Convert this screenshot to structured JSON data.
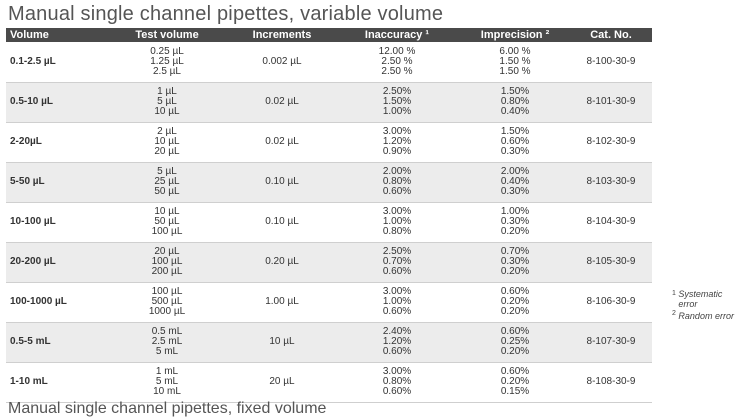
{
  "title": "Manual single channel pipettes, variable volume",
  "columns": [
    "Volume",
    "Test volume",
    "Increments",
    "Inaccuracy ¹",
    "Imprecision ²",
    "Cat. No."
  ],
  "rows": [
    {
      "volume": "0.1-2.5 µL",
      "test": [
        "0.25 µL",
        "1.25 µL",
        "2.5 µL"
      ],
      "increment": "0.002 µL",
      "inaccuracy": [
        "12.00 %",
        "2.50 %",
        "2.50 %"
      ],
      "imprecision": [
        "6.00 %",
        "1.50 %",
        "1.50 %"
      ],
      "cat": "8-100-30-9"
    },
    {
      "volume": "0.5-10 µL",
      "test": [
        "1 µL",
        "5 µL",
        "10 µL"
      ],
      "increment": "0.02 µL",
      "inaccuracy": [
        "2.50%",
        "1.50%",
        "1.00%"
      ],
      "imprecision": [
        "1.50%",
        "0.80%",
        "0.40%"
      ],
      "cat": "8-101-30-9"
    },
    {
      "volume": "2-20µL",
      "test": [
        "2 µL",
        "10 µL",
        "20 µL"
      ],
      "increment": "0.02 µL",
      "inaccuracy": [
        "3.00%",
        "1.20%",
        "0.90%"
      ],
      "imprecision": [
        "1.50%",
        "0.60%",
        "0.30%"
      ],
      "cat": "8-102-30-9"
    },
    {
      "volume": "5-50 µL",
      "test": [
        "5 µL",
        "25 µL",
        "50 µL"
      ],
      "increment": "0.10 µL",
      "inaccuracy": [
        "2.00%",
        "0.80%",
        "0.60%"
      ],
      "imprecision": [
        "2.00%",
        "0.40%",
        "0.30%"
      ],
      "cat": "8-103-30-9"
    },
    {
      "volume": "10-100 µL",
      "test": [
        "10 µL",
        "50 µL",
        "100 µL"
      ],
      "increment": "0.10 µL",
      "inaccuracy": [
        "3.00%",
        "1.00%",
        "0.80%"
      ],
      "imprecision": [
        "1.00%",
        "0.30%",
        "0.20%"
      ],
      "cat": "8-104-30-9"
    },
    {
      "volume": "20-200 µL",
      "test": [
        "20 µL",
        "100 µL",
        "200 µL"
      ],
      "increment": "0.20 µL",
      "inaccuracy": [
        "2.50%",
        "0.70%",
        "0.60%"
      ],
      "imprecision": [
        "0.70%",
        "0.30%",
        "0.20%"
      ],
      "cat": "8-105-30-9"
    },
    {
      "volume": "100-1000 µL",
      "test": [
        "100 µL",
        "500 µL",
        "1000 µL"
      ],
      "increment": "1.00 µL",
      "inaccuracy": [
        "3.00%",
        "1.00%",
        "0.60%"
      ],
      "imprecision": [
        "0.60%",
        "0.20%",
        "0.20%"
      ],
      "cat": "8-106-30-9"
    },
    {
      "volume": "0.5-5 mL",
      "test": [
        "0.5 mL",
        "2.5 mL",
        "5 mL"
      ],
      "increment": "10 µL",
      "inaccuracy": [
        "2.40%",
        "1.20%",
        "0.60%"
      ],
      "imprecision": [
        "0.60%",
        "0.25%",
        "0.20%"
      ],
      "cat": "8-107-30-9"
    },
    {
      "volume": "1-10 mL",
      "test": [
        "1 mL",
        "5 mL",
        "10 mL"
      ],
      "increment": "20 µL",
      "inaccuracy": [
        "3.00%",
        "0.80%",
        "0.60%"
      ],
      "imprecision": [
        "0.60%",
        "0.20%",
        "0.15%"
      ],
      "cat": "8-108-30-9"
    }
  ],
  "notes": {
    "note1_marker": "1",
    "note1_text": "Systematic error",
    "note2_marker": "2",
    "note2_text": "Random error"
  },
  "subtitle": "Manual single channel pipettes, fixed volume"
}
